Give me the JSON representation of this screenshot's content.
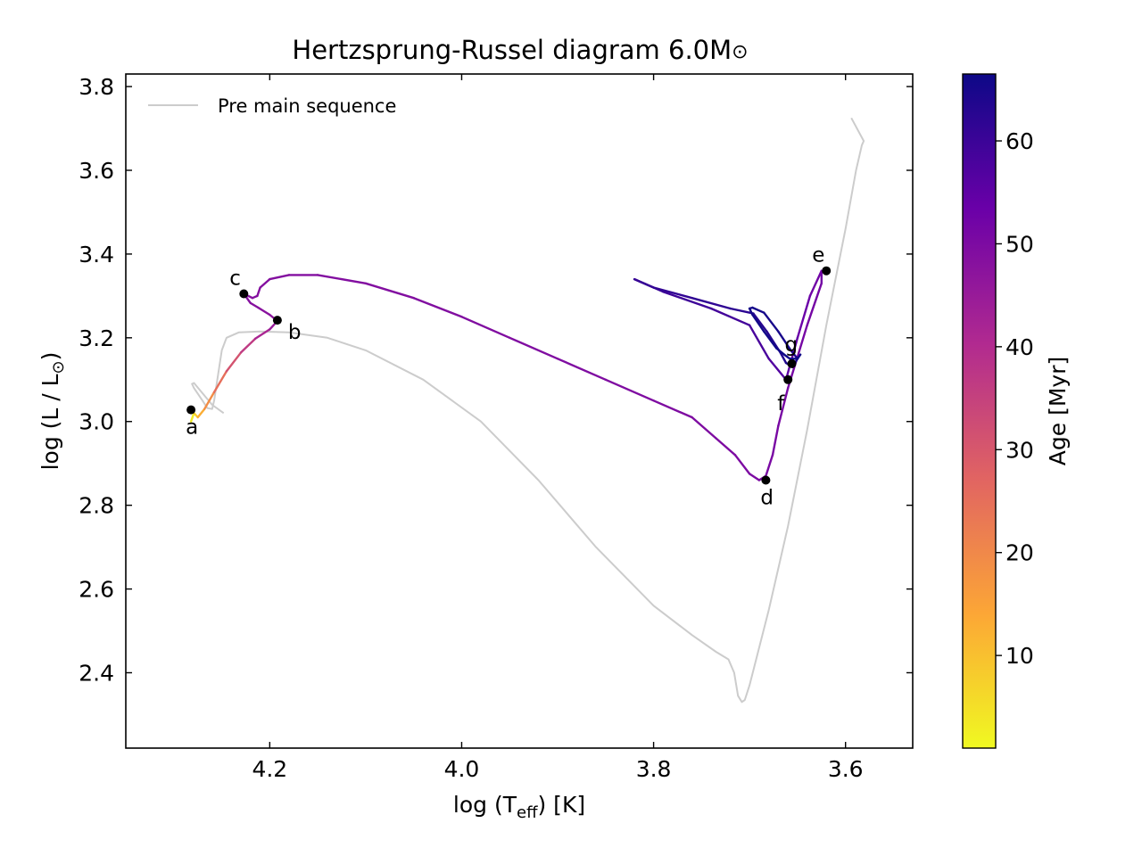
{
  "chart_data": {
    "type": "line",
    "title_prefix": "Hertzsprung-Russel diagram 6.0M",
    "title_symbol": "⊙",
    "xlabel": {
      "prefix": "log (T",
      "sub": "eff",
      "suffix": ") [K]"
    },
    "ylabel": {
      "prefix": "log (L / L",
      "sub": "⊙",
      "suffix": ")"
    },
    "xlim": [
      4.35,
      3.53
    ],
    "ylim": [
      2.22,
      3.83
    ],
    "x_inverted": true,
    "xticks": [
      4.2,
      4.0,
      3.8,
      3.6
    ],
    "yticks": [
      2.4,
      2.6,
      2.8,
      3.0,
      3.2,
      3.4,
      3.6,
      3.8
    ],
    "legend": {
      "position": "top-left",
      "entries": [
        {
          "label": "Pre main sequence",
          "color": "#cccccc"
        }
      ]
    },
    "colorbar": {
      "label": "Age [Myr]",
      "range": [
        1,
        66.5
      ],
      "ticks": [
        10,
        20,
        30,
        40,
        50,
        60
      ],
      "colormap": "plasma_r",
      "stops": [
        "#f0f921",
        "#fca636",
        "#e16462",
        "#b12a90",
        "#6a00a8",
        "#0d0887"
      ]
    },
    "series": [
      {
        "name": "Pre main sequence",
        "color": "#cccccc",
        "x": [
          3.594,
          3.581,
          3.583,
          3.589,
          3.6,
          3.62,
          3.64,
          3.66,
          3.68,
          3.7,
          3.705,
          3.708,
          3.712,
          3.716,
          3.722,
          3.735,
          3.76,
          3.8,
          3.86,
          3.92,
          3.98,
          4.04,
          4.1,
          4.14,
          4.18,
          4.21,
          4.232,
          4.245,
          4.25,
          4.258,
          4.26,
          4.265,
          4.27,
          4.279,
          4.281,
          4.279,
          4.26,
          4.248
        ],
        "y": [
          3.725,
          3.67,
          3.66,
          3.6,
          3.46,
          3.23,
          2.98,
          2.75,
          2.55,
          2.37,
          2.335,
          2.33,
          2.345,
          2.4,
          2.432,
          2.45,
          2.49,
          2.56,
          2.7,
          2.86,
          3.0,
          3.1,
          3.17,
          3.2,
          3.213,
          3.215,
          3.213,
          3.2,
          3.17,
          3.05,
          3.03,
          3.032,
          3.05,
          3.08,
          3.09,
          3.092,
          3.04,
          3.02
        ]
      },
      {
        "name": "",
        "color_by": "age",
        "x": [
          4.282,
          4.279,
          4.275,
          4.268,
          4.258,
          4.245,
          4.23,
          4.215,
          4.2,
          4.192,
          4.2,
          4.212,
          4.22,
          4.227,
          4.218,
          4.213,
          4.21,
          4.2,
          4.18,
          4.15,
          4.1,
          4.05,
          4.0,
          3.95,
          3.9,
          3.85,
          3.8,
          3.76,
          3.735,
          3.715,
          3.7,
          3.69,
          3.683,
          3.676,
          3.67,
          3.66,
          3.64,
          3.625,
          3.625,
          3.637,
          3.65,
          3.662,
          3.68,
          3.7,
          3.74,
          3.79,
          3.82,
          3.8,
          3.76,
          3.72,
          3.696,
          3.682,
          3.668,
          3.662,
          3.655,
          3.65,
          3.657,
          3.67,
          3.685,
          3.697,
          3.7,
          3.697,
          3.685,
          3.672,
          3.664,
          3.658,
          3.65,
          3.647
        ],
        "y": [
          3.0,
          3.02,
          3.01,
          3.03,
          3.07,
          3.12,
          3.165,
          3.198,
          3.22,
          3.24,
          3.255,
          3.272,
          3.283,
          3.305,
          3.295,
          3.3,
          3.32,
          3.34,
          3.35,
          3.35,
          3.33,
          3.295,
          3.25,
          3.2,
          3.15,
          3.1,
          3.05,
          3.01,
          2.96,
          2.92,
          2.875,
          2.86,
          2.87,
          2.92,
          2.99,
          3.08,
          3.23,
          3.33,
          3.36,
          3.3,
          3.2,
          3.1,
          3.15,
          3.23,
          3.27,
          3.31,
          3.34,
          3.32,
          3.295,
          3.27,
          3.258,
          3.215,
          3.165,
          3.14,
          3.13,
          3.15,
          3.17,
          3.215,
          3.26,
          3.272,
          3.27,
          3.255,
          3.215,
          3.175,
          3.16,
          3.15,
          3.15,
          3.16
        ],
        "age": [
          1,
          5,
          10,
          16,
          22,
          28,
          34,
          39,
          44,
          46.5,
          47.5,
          48.0,
          48.3,
          48.5,
          48.55,
          48.6,
          48.65,
          48.7,
          48.8,
          48.9,
          49.0,
          49.1,
          49.2,
          49.3,
          49.4,
          49.5,
          49.6,
          49.7,
          49.8,
          49.9,
          50.0,
          50.2,
          50.4,
          50.6,
          50.8,
          51.0,
          51.3,
          51.6,
          51.8,
          52.5,
          54.0,
          56.0,
          57.5,
          58.5,
          59.3,
          60.0,
          60.5,
          61.0,
          61.5,
          62.0,
          62.5,
          63.0,
          63.5,
          64.0,
          64.3,
          64.6,
          64.9,
          65.1,
          65.3,
          65.5,
          65.7,
          65.8,
          65.9,
          66.0,
          66.1,
          66.2,
          66.3,
          66.5
        ]
      }
    ],
    "points": [
      {
        "label": "a",
        "x": 4.282,
        "y": 3.028,
        "label_pos": "below"
      },
      {
        "label": "b",
        "x": 4.192,
        "y": 3.242,
        "label_pos": "below-right"
      },
      {
        "label": "c",
        "x": 4.227,
        "y": 3.305,
        "label_pos": "above-left"
      },
      {
        "label": "d",
        "x": 3.683,
        "y": 2.86,
        "label_pos": "below"
      },
      {
        "label": "e",
        "x": 3.62,
        "y": 3.36,
        "label_pos": "above-left"
      },
      {
        "label": "f",
        "x": 3.66,
        "y": 3.1,
        "label_pos": "below-left"
      },
      {
        "label": "g",
        "x": 3.656,
        "y": 3.138,
        "label_pos": "above"
      }
    ],
    "point_color": "#000000"
  }
}
